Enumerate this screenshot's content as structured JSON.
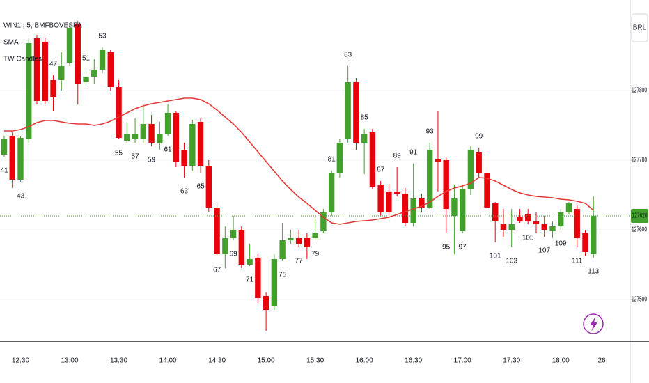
{
  "chart_data": {
    "type": "candlestick",
    "title": "WIN1!, 5, BMFBOVESPA",
    "indicator": "TW Candles",
    "currency": "BRL",
    "up_color": "#43a02c",
    "down_color": "#e8000b",
    "categories": [
      null,
      null,
      "12:30",
      null,
      null,
      null,
      null,
      null,
      "13:00",
      null,
      null,
      null,
      null,
      null,
      "13:30",
      null,
      null,
      null,
      null,
      null,
      "14:00",
      null,
      null,
      null,
      null,
      null,
      "14:30",
      null,
      null,
      null,
      null,
      null,
      "15:00",
      null,
      null,
      null,
      null,
      null,
      "15:30",
      null,
      null,
      null,
      null,
      null,
      "16:00",
      null,
      null,
      null,
      null,
      null,
      "16:30",
      null,
      null,
      null,
      null,
      null,
      "17:00",
      null,
      null,
      null,
      null,
      null,
      "17:30",
      null,
      null,
      null,
      null,
      null,
      "18:00",
      null,
      null,
      null,
      null,
      "26"
    ],
    "open": [
      127708,
      127735,
      127672,
      127730,
      127875,
      127870,
      127815,
      127815,
      127840,
      127895,
      127812,
      127820,
      127830,
      127855,
      127805,
      127728,
      127730,
      127730,
      127752,
      127725,
      127738,
      127768,
      127715,
      127692,
      127755,
      127692,
      127632,
      127565,
      127588,
      127600,
      127550,
      127560,
      127505,
      127490,
      127558,
      127585,
      127588,
      127588,
      127588,
      127598,
      127625,
      127682,
      127730,
      127812,
      127725,
      127740,
      127665,
      127655,
      127655,
      127652,
      127610,
      127645,
      127632,
      127702,
      127700,
      127620,
      127598,
      127658,
      127712,
      127682,
      127638,
      127608,
      127600,
      127618,
      127622,
      127612,
      127608,
      127598,
      127605,
      127625,
      127630,
      127595,
      127565,
      null
    ],
    "high": [
      127735,
      127740,
      127735,
      127875,
      127880,
      127875,
      127822,
      127855,
      127895,
      127900,
      127830,
      127845,
      127862,
      127858,
      127815,
      127755,
      127760,
      127780,
      127765,
      127755,
      127780,
      127770,
      127725,
      127758,
      127760,
      127700,
      127640,
      127605,
      127620,
      127605,
      127580,
      127565,
      127510,
      127565,
      127610,
      127600,
      127600,
      127595,
      127615,
      127630,
      127685,
      127730,
      127835,
      127818,
      127745,
      127745,
      127670,
      127665,
      127690,
      127660,
      127695,
      127652,
      127725,
      127770,
      127705,
      127665,
      127665,
      127720,
      127718,
      127690,
      127640,
      127630,
      127630,
      127630,
      127630,
      127625,
      127620,
      127612,
      127630,
      127640,
      127635,
      127600,
      127648,
      null
    ],
    "low": [
      127705,
      127660,
      127668,
      127725,
      127780,
      127780,
      127770,
      127800,
      127835,
      127780,
      127805,
      127810,
      127825,
      127800,
      127730,
      127725,
      127725,
      127725,
      127720,
      127715,
      127735,
      127690,
      127675,
      127685,
      127682,
      127625,
      127562,
      127545,
      127585,
      127545,
      127548,
      127495,
      127455,
      127485,
      127555,
      127580,
      127575,
      127558,
      127585,
      127595,
      127620,
      127675,
      127725,
      127715,
      127680,
      127658,
      127620,
      127620,
      127648,
      127605,
      127605,
      127625,
      127630,
      127655,
      127595,
      127565,
      127595,
      127650,
      127675,
      127625,
      127582,
      127590,
      127575,
      127610,
      127608,
      127595,
      127590,
      127588,
      127600,
      127622,
      127575,
      127562,
      127560,
      null
    ],
    "close": [
      127730,
      127672,
      127732,
      127868,
      127785,
      127785,
      127790,
      127835,
      127890,
      127810,
      127820,
      127830,
      127858,
      127805,
      127732,
      127738,
      127738,
      127752,
      127725,
      127738,
      127768,
      127698,
      127692,
      127752,
      127692,
      127632,
      127565,
      127588,
      127600,
      127550,
      127558,
      127502,
      127485,
      127558,
      127585,
      127588,
      127580,
      127575,
      127595,
      127625,
      127682,
      127725,
      127812,
      127725,
      127738,
      127662,
      127625,
      127625,
      127652,
      127610,
      127645,
      127632,
      127715,
      127698,
      127630,
      127645,
      127658,
      127715,
      127682,
      127632,
      127612,
      127600,
      127608,
      127612,
      127612,
      127608,
      127600,
      127605,
      127625,
      127638,
      127588,
      127568,
      127620,
      null
    ],
    "sma": {
      "name": "SMA",
      "color": "#e53935",
      "values": [
        127742,
        127742,
        127744,
        127748,
        127754,
        127757,
        127757,
        127755,
        127753,
        127752,
        127752,
        127750,
        127752,
        127756,
        127762,
        127768,
        127774,
        127778,
        127781,
        127783,
        127785,
        127787,
        127789,
        127789,
        127787,
        127781,
        127772,
        127762,
        127752,
        127740,
        127726,
        127712,
        127698,
        127684,
        127670,
        127658,
        127647,
        127638,
        127628,
        127618,
        127610,
        127608,
        127610,
        127612,
        127613,
        127614,
        127616,
        127618,
        127622,
        127626,
        127630,
        127634,
        127640,
        127648,
        127655,
        127660,
        127663,
        127667,
        127675,
        127674,
        127670,
        127664,
        127658,
        127653,
        127650,
        127648,
        127647,
        127646,
        127644,
        127643,
        127641,
        127638,
        127628,
        null
      ]
    },
    "bull_counts": [
      null,
      null,
      null,
      null,
      null,
      null,
      47,
      null,
      null,
      null,
      51,
      null,
      53,
      null,
      null,
      null,
      null,
      null,
      null,
      null,
      null,
      null,
      null,
      null,
      null,
      null,
      null,
      null,
      null,
      null,
      null,
      null,
      null,
      null,
      null,
      null,
      null,
      null,
      null,
      null,
      81,
      null,
      83,
      null,
      85,
      null,
      87,
      null,
      89,
      null,
      91,
      null,
      93,
      null,
      null,
      null,
      null,
      null,
      99,
      null,
      null,
      null,
      null,
      null,
      null,
      null,
      null,
      null,
      null,
      null,
      null,
      null,
      null,
      null
    ],
    "bear_counts": [
      41,
      null,
      43,
      null,
      null,
      null,
      null,
      null,
      null,
      null,
      null,
      null,
      null,
      null,
      55,
      null,
      57,
      null,
      59,
      null,
      61,
      null,
      63,
      null,
      65,
      null,
      67,
      null,
      69,
      null,
      71,
      null,
      null,
      null,
      75,
      null,
      77,
      null,
      79,
      null,
      null,
      null,
      null,
      null,
      null,
      null,
      null,
      null,
      null,
      null,
      null,
      null,
      null,
      null,
      95,
      null,
      97,
      null,
      null,
      null,
      101,
      null,
      103,
      null,
      105,
      null,
      107,
      null,
      109,
      null,
      111,
      null,
      113,
      null
    ],
    "last_price": 127620,
    "ylim": [
      127440,
      127930
    ],
    "yticks": [
      127500,
      127600,
      127700,
      127800
    ],
    "grid": true
  }
}
